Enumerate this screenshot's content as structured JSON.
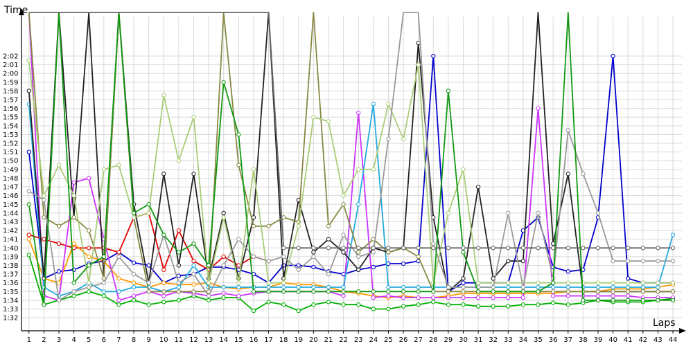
{
  "chart_data": {
    "type": "line",
    "xlabel": "Laps",
    "ylabel": "Time",
    "x": [
      1,
      2,
      3,
      4,
      5,
      6,
      7,
      8,
      9,
      10,
      11,
      12,
      13,
      14,
      15,
      16,
      17,
      18,
      19,
      20,
      21,
      22,
      23,
      24,
      25,
      26,
      27,
      28,
      29,
      30,
      31,
      32,
      33,
      34,
      35,
      36,
      37,
      38,
      39,
      40,
      41,
      42,
      43,
      44
    ],
    "x_ticks": [
      "1",
      "2",
      "3",
      "4",
      "5",
      "6",
      "7",
      "8",
      "9",
      "10",
      "11",
      "12",
      "13",
      "14",
      "15",
      "16",
      "17",
      "18",
      "19",
      "20",
      "21",
      "22",
      "23",
      "24",
      "25",
      "26",
      "27",
      "28",
      "29",
      "30",
      "31",
      "32",
      "33",
      "34",
      "35",
      "36",
      "37",
      "38",
      "39",
      "40",
      "41",
      "42",
      "43",
      "44"
    ],
    "y_ticks": [
      "1:32",
      "1:33",
      "1:34",
      "1:35",
      "1:36",
      "1:37",
      "1:38",
      "1:39",
      "1:40",
      "1:41",
      "1:42",
      "1:43",
      "1:44",
      "1:45",
      "1:46",
      "1:47",
      "1:48",
      "1:49",
      "1:50",
      "1:51",
      "1:52",
      "1:53",
      "1:54",
      "1:55",
      "1:56",
      "1:57",
      "1:58",
      "1:59",
      "2:00",
      "2:01",
      "2:02"
    ],
    "y_unit": "seconds",
    "ylim": [
      90.5,
      127
    ],
    "xlim": [
      0.5,
      44.6
    ],
    "grid": true,
    "series": [
      {
        "color": "#0000cc",
        "values": [
          111,
          96.5,
          97.3,
          97.5,
          98.2,
          98.5,
          99.5,
          98.3,
          98,
          96,
          96.8,
          97,
          97.8,
          97.8,
          97.5,
          97,
          96,
          98,
          98,
          97.8,
          97.3,
          97,
          97.5,
          97.8,
          98.2,
          98.2,
          98.5,
          122,
          95,
          96,
          96,
          96,
          96,
          102,
          103.5,
          97.8,
          97.3,
          97.5,
          103.5,
          122,
          96.5,
          96,
          96,
          96
        ]
      },
      {
        "color": "#e00000",
        "values": [
          101.5,
          101,
          100.5,
          100,
          100,
          100,
          99.5,
          103.5,
          104,
          97.5,
          102,
          98.5,
          97.5,
          99,
          98,
          99,
          98.5,
          null,
          null,
          null,
          null,
          null,
          null,
          null,
          null,
          null,
          null,
          null,
          null,
          null,
          null,
          null,
          null,
          null,
          null,
          null,
          null,
          null,
          null,
          null,
          null,
          null,
          null,
          null
        ]
      },
      {
        "color": "#00b000",
        "values": [
          99.2,
          93.5,
          94,
          94.5,
          95,
          94.5,
          93.5,
          94,
          93.5,
          93.8,
          94,
          94.5,
          94,
          94.3,
          94.3,
          92.8,
          93.8,
          93.5,
          92.8,
          93.5,
          93.8,
          93.5,
          93.5,
          93,
          93,
          93.3,
          93.5,
          93.8,
          93.5,
          93.5,
          93.3,
          93.3,
          93.3,
          93.5,
          93.5,
          93.7,
          93.5,
          93.7,
          94,
          93.8,
          93.8,
          93.8,
          94,
          94.2
        ]
      },
      {
        "color": "#ff9900",
        "values": [
          101,
          96.5,
          96,
          100.5,
          99,
          98.5,
          96.5,
          96,
          95.5,
          96,
          95.8,
          95.8,
          96,
          95.5,
          95.3,
          95.5,
          95.5,
          96,
          95.8,
          95.8,
          95.5,
          95,
          94.8,
          94.5,
          94.3,
          94.5,
          94.3,
          94.3,
          94.5,
          94.8,
          94.8,
          94.8,
          94.8,
          94.8,
          94.8,
          94.8,
          95,
          95,
          95,
          95.3,
          95.3,
          95.3,
          95.5,
          95.8
        ]
      },
      {
        "color": "#cc33ff",
        "values": [
          127,
          94.5,
          94,
          107.5,
          108,
          101,
          94,
          94.5,
          95,
          94.5,
          95,
          94.8,
          94.5,
          94.8,
          94.5,
          94.8,
          95,
          95,
          95,
          95,
          95,
          94.5,
          115.5,
          94.3,
          94.5,
          94.3,
          94.3,
          94.3,
          94.3,
          94.3,
          94.3,
          94.3,
          94.3,
          94.3,
          116,
          94.5,
          94.5,
          94.5,
          94.5,
          94.5,
          94.5,
          94.3,
          94.3,
          94.3
        ]
      },
      {
        "color": "#22aadd",
        "values": [
          116.5,
          95.5,
          94.5,
          95,
          96,
          95,
          95,
          95.5,
          95.5,
          95,
          95.5,
          98,
          95.5,
          95.5,
          95.5,
          95.5,
          95.5,
          95.5,
          95.5,
          95.5,
          95.5,
          95.5,
          105,
          116.5,
          95.5,
          95.5,
          95.5,
          95.5,
          95.5,
          95.5,
          95.5,
          95.5,
          95.5,
          95.5,
          95.5,
          95.5,
          95.5,
          95.5,
          95.5,
          95.5,
          95.5,
          95.5,
          95.5,
          101.5
        ]
      },
      {
        "color": "#222222",
        "values": [
          118,
          96.5,
          127,
          103.5,
          127,
          96.5,
          127,
          105,
          96,
          108.5,
          98,
          108.5,
          96.5,
          104,
          96.5,
          103.5,
          127,
          96.5,
          105.5,
          99.5,
          101,
          99.5,
          97.5,
          100,
          99.5,
          100,
          123.5,
          103.5,
          95,
          96.5,
          107,
          96.5,
          98.5,
          98.5,
          127,
          100.5,
          108.5,
          95,
          95,
          95,
          95,
          95,
          95,
          95
        ]
      },
      {
        "color": "#888844",
        "values": [
          127,
          103.5,
          102.5,
          103.5,
          102,
          96.5,
          127,
          103.5,
          95,
          95,
          95,
          95,
          95,
          127,
          109.5,
          102.5,
          102.5,
          103.5,
          103,
          127,
          102.5,
          105,
          99.5,
          101,
          99.5,
          100,
          99,
          95,
          95,
          95,
          95,
          95,
          95,
          95,
          95,
          95,
          95,
          95,
          95,
          95,
          95,
          95,
          95,
          95
        ]
      },
      {
        "color": "#aacc77",
        "values": [
          121.5,
          106,
          109.5,
          106,
          96,
          109,
          109.5,
          103.5,
          104,
          117.5,
          110,
          115,
          96,
          103.5,
          96,
          109,
          96,
          96,
          102.5,
          115,
          114.5,
          106,
          109,
          109,
          116.5,
          112.5,
          121,
          96,
          104,
          109,
          96,
          96,
          96,
          96,
          96,
          96,
          96,
          96,
          96,
          96,
          96,
          96,
          96,
          96
        ]
      },
      {
        "color": "#999999",
        "values": [
          106.5,
          105.5,
          94,
          95,
          95.5,
          96,
          99,
          97,
          96,
          101.5,
          96,
          97,
          94.5,
          98,
          101,
          99,
          98.5,
          99,
          97.5,
          99,
          97,
          101.5,
          99,
          99.5,
          112.5,
          127,
          127,
          100.5,
          95.5,
          95.5,
          95.5,
          95.5,
          104,
          95.5,
          104,
          96.5,
          113.5,
          108.5,
          104,
          98.5,
          98.5,
          98.5,
          98.5,
          98.5
        ]
      },
      {
        "color": "#119911",
        "values": [
          105,
          93.5,
          127,
          96,
          98,
          99,
          127,
          104,
          105,
          101.5,
          99.5,
          100.5,
          98,
          119,
          113,
          95,
          95,
          95,
          95,
          95,
          95,
          95,
          95,
          95,
          95,
          95,
          95,
          95,
          118,
          99.5,
          95,
          95,
          95,
          95,
          95,
          96,
          127,
          94,
          94,
          94,
          94,
          94,
          94,
          94
        ]
      },
      {
        "color": "#666666",
        "values": [
          127,
          127,
          127,
          127,
          127,
          127,
          127,
          127,
          127,
          127,
          127,
          127,
          127,
          127,
          127,
          127,
          127,
          100,
          100,
          100,
          100,
          100,
          100,
          100,
          100,
          100,
          100,
          100,
          100,
          100,
          100,
          100,
          100,
          100,
          100,
          100,
          100,
          100,
          100,
          100,
          100,
          100,
          100,
          100
        ]
      }
    ]
  }
}
